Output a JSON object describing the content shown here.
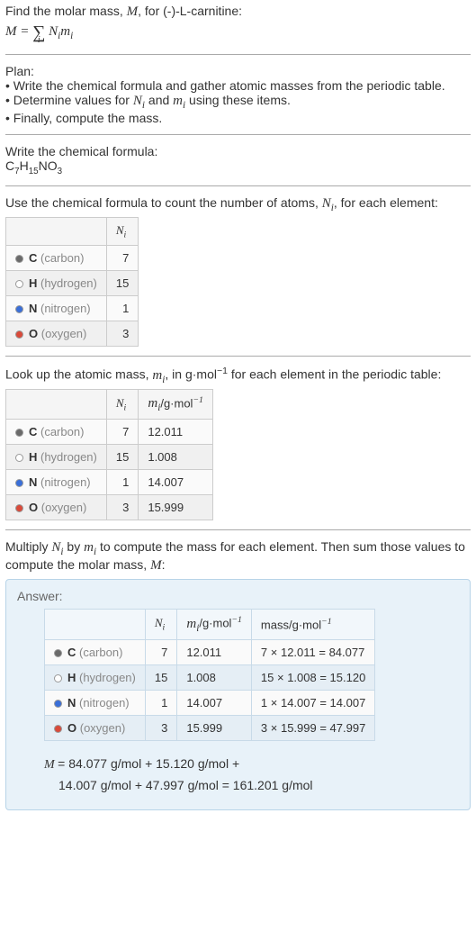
{
  "intro": {
    "line1_pre": "Find the molar mass, ",
    "line1_var": "M",
    "line1_post": ", for (-)-L-carnitine:",
    "eq_left": "M",
    "eq_terms": "N_i m_i"
  },
  "plan": {
    "heading": "Plan:",
    "b1": "• Write the chemical formula and gather atomic masses from the periodic table.",
    "b2_pre": "• Determine values for ",
    "b2_n": "N_i",
    "b2_mid": " and ",
    "b2_m": "m_i",
    "b2_post": " using these items.",
    "b3": "• Finally, compute the mass."
  },
  "chem": {
    "heading": "Write the chemical formula:",
    "formula": "C7H15NO3"
  },
  "count": {
    "heading_pre": "Use the chemical formula to count the number of atoms, ",
    "heading_var": "N_i",
    "heading_post": ", for each element:",
    "col_n": "N_i"
  },
  "elements": [
    {
      "dot": "#6a6a6a",
      "dotStyle": "filled",
      "sym": "C",
      "name": "(carbon)",
      "n": "7",
      "m": "12.011",
      "mass": "7 × 12.011 = 84.077"
    },
    {
      "dot": "#ffffff",
      "dotStyle": "open",
      "sym": "H",
      "name": "(hydrogen)",
      "n": "15",
      "m": "1.008",
      "mass": "15 × 1.008 = 15.120"
    },
    {
      "dot": "#3a6fd8",
      "dotStyle": "filled",
      "sym": "N",
      "name": "(nitrogen)",
      "n": "1",
      "m": "14.007",
      "mass": "1 × 14.007 = 14.007"
    },
    {
      "dot": "#d94a3a",
      "dotStyle": "filled",
      "sym": "O",
      "name": "(oxygen)",
      "n": "3",
      "m": "15.999",
      "mass": "3 × 15.999 = 47.997"
    }
  ],
  "mass": {
    "heading_pre": "Look up the atomic mass, ",
    "heading_var": "m_i",
    "heading_mid": ", in g·mol",
    "heading_exp": "−1",
    "heading_post": " for each element in the periodic table:",
    "col_n": "N_i",
    "col_m_pre": "m_i",
    "col_m_unit": "/g·mol",
    "col_m_exp": "−1"
  },
  "multiply": {
    "line_pre": "Multiply ",
    "n": "N_i",
    "mid": " by ",
    "m": "m_i",
    "post": " to compute the mass for each element. Then sum those values to compute the molar mass, ",
    "mvar": "M",
    "end": ":"
  },
  "answer": {
    "label": "Answer:",
    "col_n": "N_i",
    "col_m_pre": "m_i",
    "col_unit": "/g·mol",
    "col_exp": "−1",
    "col_mass": "mass/g·mol",
    "final_l1": "M = 84.077 g/mol + 15.120 g/mol +",
    "final_l2": "14.007 g/mol + 47.997 g/mol = 161.201 g/mol"
  }
}
